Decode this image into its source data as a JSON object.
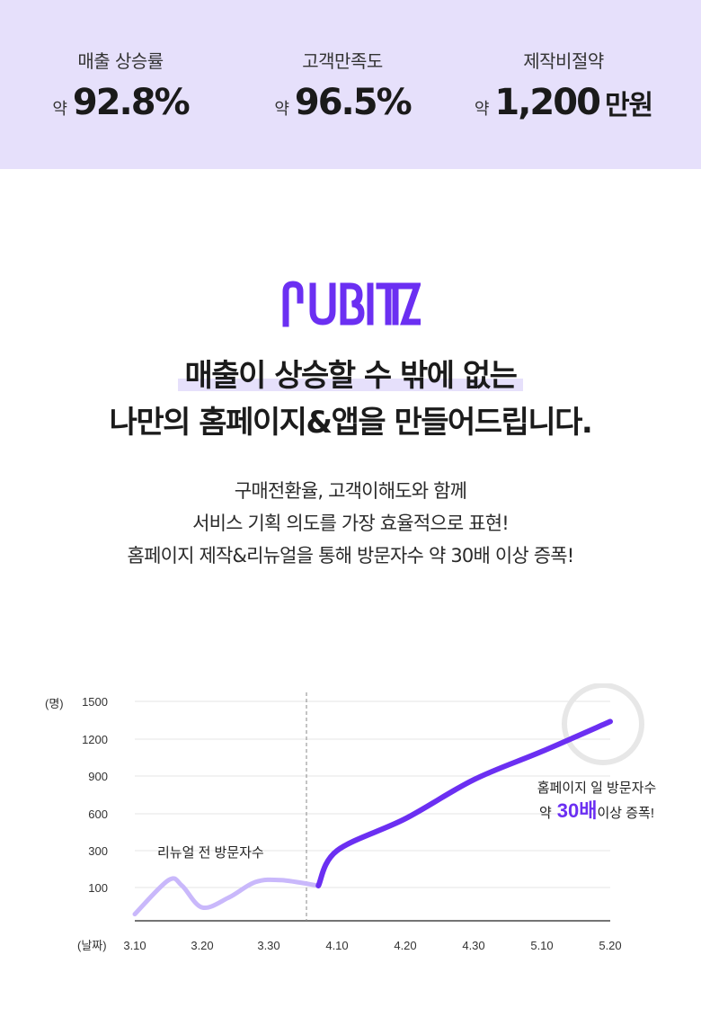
{
  "stats": [
    {
      "label": "매출 상승률",
      "prefix": "약",
      "value": "92.8%",
      "unit": ""
    },
    {
      "label": "고객만족도",
      "prefix": "약",
      "value": "96.5%",
      "unit": ""
    },
    {
      "label": "제작비절약",
      "prefix": "약",
      "value": "1,200",
      "unit": "만원"
    }
  ],
  "brand": {
    "name": "PUBITTZ",
    "color": "#6b2ff2"
  },
  "headline": {
    "line1": "매출이 상승할 수 밖에 없는",
    "line2": "나만의 홈페이지&앱을 만들어드립니다."
  },
  "description": [
    "구매전환율, 고객이해도와 함께",
    "서비스 기획 의도를 가장 효율적으로 표현!",
    "홈페이지 제작&리뉴얼을 통해  방문자수 약 30배 이상 증폭!"
  ],
  "chart_data": {
    "type": "line",
    "y_unit_label": "(명)",
    "x_unit_label": "(날짜)",
    "y_ticks": [
      1500,
      1200,
      900,
      600,
      300,
      100
    ],
    "x_ticks": [
      "3.10",
      "3.20",
      "3.30",
      "4.10",
      "4.20",
      "4.30",
      "5.10",
      "5.20"
    ],
    "series": [
      {
        "name": "리뉴얼 전 방문자수",
        "color": "#c9b8fb",
        "x": [
          "3.10",
          "3.15",
          "3.17",
          "3.20",
          "3.24",
          "3.28",
          "3.32",
          "4.07"
        ],
        "values": [
          20,
          140,
          110,
          40,
          70,
          130,
          140,
          110
        ]
      },
      {
        "name": "홈페이지 일 방문자수",
        "color": "#6b2ff2",
        "x": [
          "4.07",
          "4.10",
          "4.20",
          "4.30",
          "5.10",
          "5.20"
        ],
        "values": [
          110,
          300,
          560,
          870,
          1100,
          1340
        ]
      }
    ],
    "annotation_left": "리뉴얼 전 방문자수",
    "annotation_right": {
      "line1": "홈페이지 일 방문자수",
      "pre": "약",
      "highlight": "30배",
      "post": "이상 증폭!"
    },
    "grid": true
  }
}
